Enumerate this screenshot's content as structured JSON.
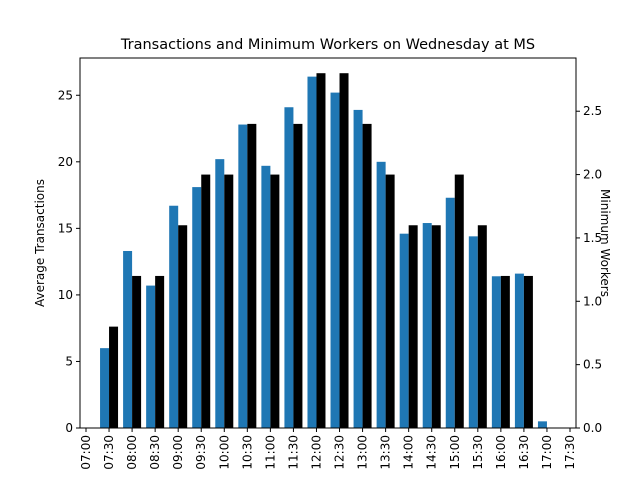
{
  "chart_data": {
    "type": "bar",
    "title": "Transactions and Minimum Workers on Wednesday at MS",
    "ylabel": "Average Transactions",
    "ylabel_right": "Minimum Workers",
    "categories": [
      "07:00",
      "07:30",
      "08:00",
      "08:30",
      "09:00",
      "09:30",
      "10:00",
      "10:30",
      "11:00",
      "11:30",
      "12:00",
      "12:30",
      "13:00",
      "13:30",
      "14:00",
      "14:30",
      "15:00",
      "15:30",
      "16:00",
      "16:30",
      "17:00",
      "17:30"
    ],
    "ylim": [
      0,
      27.8
    ],
    "ylim_right": [
      0,
      2.92
    ],
    "yticks": [
      0,
      5,
      10,
      15,
      20,
      25
    ],
    "yticks_right": [
      0.0,
      0.5,
      1.0,
      1.5,
      2.0,
      2.5
    ],
    "grid": false,
    "series": [
      {
        "axis": "left",
        "color": "#1f77b4",
        "values": [
          0,
          6.0,
          13.3,
          10.7,
          16.7,
          18.1,
          20.2,
          22.8,
          19.7,
          24.1,
          26.4,
          25.2,
          23.9,
          20.0,
          14.6,
          15.4,
          17.3,
          14.4,
          11.4,
          11.6,
          0.5,
          0
        ]
      },
      {
        "axis": "right",
        "color": "#000000",
        "values": [
          0,
          0.8,
          1.2,
          1.2,
          1.6,
          2.0,
          2.0,
          2.4,
          2.0,
          2.4,
          2.8,
          2.8,
          2.4,
          2.0,
          1.6,
          1.6,
          2.0,
          1.6,
          1.2,
          1.2,
          0,
          0
        ]
      }
    ]
  }
}
